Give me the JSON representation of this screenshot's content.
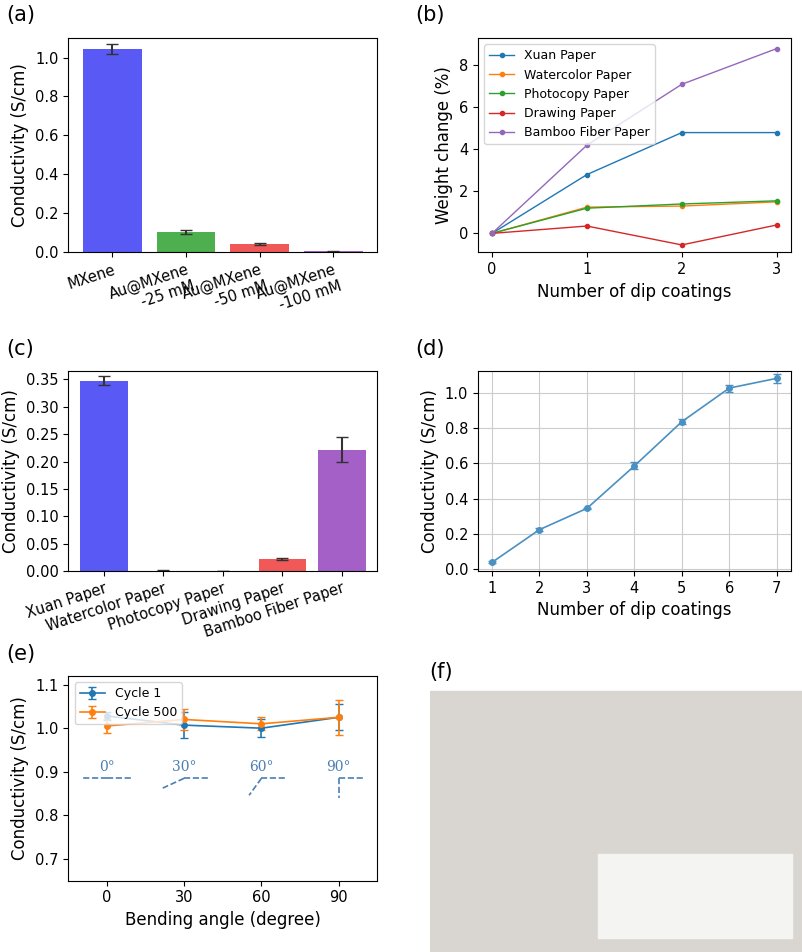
{
  "chart_data": [
    {
      "type": "bar",
      "title": "(a)",
      "y_label": "Conductivity (S/cm)",
      "categories": [
        "MXene",
        "Au@MXene\n-25 mM",
        "Au@MXene\n-50 mM",
        "Au@MXene\n-100 mM"
      ],
      "values": [
        1.045,
        0.105,
        0.042,
        0.005
      ],
      "errors": [
        0.025,
        0.01,
        0.006,
        0.002
      ],
      "colors": [
        "#4747f5",
        "#3aa63a",
        "#f04747",
        "#9a4fc0"
      ],
      "ylim": [
        0,
        1.1
      ],
      "yticks": [
        0.0,
        0.2,
        0.4,
        0.6,
        0.8,
        1.0
      ],
      "grid": false
    },
    {
      "type": "line",
      "title": "(b)",
      "x_label": "Number of dip coatings",
      "y_label": "Weight change (%)",
      "x": [
        0,
        1,
        2,
        3
      ],
      "marker": "o",
      "legend": "upper left",
      "grid": false,
      "series": [
        {
          "name": "Xuan Paper",
          "color": "#1f77b4",
          "values": [
            0,
            2.8,
            4.8,
            4.8
          ]
        },
        {
          "name": "Watercolor Paper",
          "color": "#ff7f0e",
          "values": [
            0,
            1.25,
            1.3,
            1.5
          ]
        },
        {
          "name": "Photocopy Paper",
          "color": "#2ca02c",
          "values": [
            0,
            1.2,
            1.4,
            1.55
          ]
        },
        {
          "name": "Drawing Paper",
          "color": "#d62728",
          "values": [
            0,
            0.35,
            -0.55,
            0.4
          ]
        },
        {
          "name": "Bamboo Fiber Paper",
          "color": "#9467bd",
          "values": [
            0,
            4.2,
            7.1,
            8.8
          ]
        }
      ],
      "xlim": [
        -0.15,
        3.15
      ],
      "xticks": [
        0,
        1,
        2,
        3
      ],
      "ylim": [
        -0.9,
        9.3
      ],
      "yticks": [
        0,
        2,
        4,
        6,
        8
      ]
    },
    {
      "type": "bar",
      "title": "(c)",
      "y_label": "Conductivity (S/cm)",
      "categories": [
        "Xuan Paper",
        "Watercolor Paper",
        "Photocopy Paper",
        "Drawing Paper",
        "Bamboo Fiber Paper"
      ],
      "values": [
        0.348,
        0.001,
        0.0,
        0.022,
        0.222
      ],
      "errors": [
        0.008,
        0.0003,
        0.0,
        0.002,
        0.023
      ],
      "colors": [
        "#4747f5",
        "#3aa63a",
        "#f5a347",
        "#f04747",
        "#9a4fc0"
      ],
      "ylim": [
        0,
        0.365
      ],
      "yticks": [
        {
          "value": 0.0,
          "label": "0.00"
        },
        0.05,
        {
          "value": 0.1,
          "label": "0.10"
        },
        0.15,
        {
          "value": 0.2,
          "label": "0.20"
        },
        0.25,
        {
          "value": 0.3,
          "label": "0.30"
        },
        0.35
      ],
      "grid": false
    },
    {
      "type": "line",
      "title": "(d)",
      "x_label": "Number of dip coatings",
      "y_label": "Conductivity (S/cm)",
      "x": [
        1,
        2,
        3,
        4,
        5,
        6,
        7
      ],
      "marker": "o",
      "color": "#4a90c2",
      "grid": true,
      "values": [
        0.04,
        0.225,
        0.345,
        0.585,
        0.835,
        1.025,
        1.08
      ],
      "errors": [
        0.005,
        0.01,
        0.005,
        0.02,
        0.015,
        0.02,
        0.025
      ],
      "xlim": [
        0.7,
        7.3
      ],
      "xticks": [
        1,
        2,
        3,
        4,
        5,
        6,
        7
      ],
      "ylim": [
        -0.01,
        1.12
      ],
      "yticks": [
        0.0,
        0.2,
        0.4,
        0.6,
        0.8,
        1.0
      ]
    },
    {
      "type": "line",
      "title": "(e)",
      "x_label": "Bending angle (degree)",
      "y_label": "Conductivity (S/cm)",
      "x": [
        0,
        30,
        60,
        90
      ],
      "marker": "o",
      "legend": "upper left",
      "grid": false,
      "series": [
        {
          "name": "Cycle 1",
          "color": "#1f77b4",
          "values": [
            1.028,
            1.007,
            1.0,
            1.025
          ],
          "errors": [
            0.01,
            0.03,
            0.02,
            0.03
          ]
        },
        {
          "name": "Cycle 500",
          "color": "#ff7f0e",
          "values": [
            1.005,
            1.02,
            1.01,
            1.025
          ],
          "errors": [
            0.015,
            0.025,
            0.015,
            0.04
          ]
        }
      ],
      "annotations": [
        "0°",
        "30°",
        "60°",
        "90°"
      ],
      "xlim": [
        -15,
        105
      ],
      "xticks": [
        0,
        30,
        60,
        90
      ],
      "ylim": [
        0.65,
        1.12
      ],
      "yticks": [
        0.7,
        0.8,
        0.9,
        1.0,
        1.1
      ]
    },
    {
      "type": "image",
      "title": "(f)"
    }
  ]
}
